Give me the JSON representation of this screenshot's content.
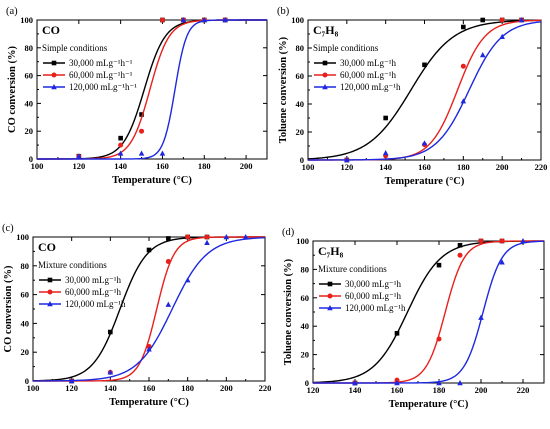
{
  "chart_data": [
    {
      "type": "line",
      "panel": "(a)",
      "title": "CO",
      "condition": "Simple conditions",
      "xlabel": "Temperature (°C)",
      "ylabel": "CO conversion (%)",
      "xlim": [
        100,
        210
      ],
      "ylim": [
        0,
        100
      ],
      "xticks": [
        100,
        120,
        140,
        160,
        180,
        200
      ],
      "yticks": [
        0,
        20,
        40,
        60,
        80,
        100
      ],
      "legend_position": "top-left",
      "series": [
        {
          "name": "30,000 mLg⁻¹h⁻¹",
          "color": "#000000",
          "marker": "square",
          "x": [
            120,
            140,
            150,
            160,
            170,
            180,
            190
          ],
          "y": [
            2,
            15,
            32,
            100,
            100,
            100,
            100
          ],
          "fit": {
            "k": 5,
            "x0": 151.3
          }
        },
        {
          "name": "60,000 mLg⁻¹h⁻¹",
          "color": "#e8201c",
          "marker": "circle",
          "x": [
            120,
            140,
            150,
            160,
            170,
            180,
            190
          ],
          "y": [
            2,
            10,
            20,
            100,
            100,
            100,
            100
          ],
          "fit": {
            "k": 4.6,
            "x0": 154
          }
        },
        {
          "name": "120,000 mLg⁻¹h⁻¹",
          "color": "#1d28e0",
          "marker": "triangle",
          "x": [
            120,
            140,
            150,
            160,
            170,
            180,
            190
          ],
          "y": [
            2,
            4,
            4,
            4,
            100,
            100,
            100
          ],
          "fit": {
            "k": 2.8,
            "x0": 166
          }
        }
      ]
    },
    {
      "type": "line",
      "panel": "(b)",
      "title": "C₇H₈",
      "condition": "Simple conditions",
      "xlabel": "Temperature (°C)",
      "ylabel": "Toluene conversion (%)",
      "xlim": [
        100,
        220
      ],
      "ylim": [
        0,
        100
      ],
      "xticks": [
        100,
        120,
        140,
        160,
        180,
        200,
        220
      ],
      "yticks": [
        0,
        20,
        40,
        60,
        80,
        100
      ],
      "legend_position": "top-left",
      "series": [
        {
          "name": "30,000 mLg⁻¹h",
          "color": "#000000",
          "marker": "square",
          "x": [
            120,
            140,
            160,
            180,
            190,
            200,
            210
          ],
          "y": [
            0,
            30,
            68,
            95,
            100,
            100,
            100
          ],
          "fit": {
            "k": 11,
            "x0": 153
          }
        },
        {
          "name": "60,000 mLg⁻¹h",
          "color": "#e8201c",
          "marker": "circle",
          "x": [
            120,
            140,
            160,
            180,
            200,
            210
          ],
          "y": [
            0,
            3,
            11,
            67,
            100,
            100
          ],
          "fit": {
            "k": 7,
            "x0": 177
          }
        },
        {
          "name": "120,000 mLg⁻¹h",
          "color": "#1d28e0",
          "marker": "triangle",
          "x": [
            120,
            140,
            160,
            180,
            190,
            200,
            210
          ],
          "y": [
            0,
            5,
            12,
            42,
            75,
            88,
            100
          ],
          "fit": {
            "k": 8.5,
            "x0": 183
          }
        }
      ]
    },
    {
      "type": "line",
      "panel": "(c)",
      "title": "CO",
      "condition": "Mixture conditions",
      "xlabel": "Temperature (°C)",
      "ylabel": "CO conversion (%)",
      "xlim": [
        100,
        220
      ],
      "ylim": [
        0,
        100
      ],
      "xticks": [
        100,
        120,
        140,
        160,
        180,
        200,
        220
      ],
      "yticks": [
        0,
        20,
        40,
        60,
        80,
        100
      ],
      "legend_position": "top-left",
      "series": [
        {
          "name": "30,000 mLg⁻¹h",
          "color": "#000000",
          "marker": "square",
          "x": [
            120,
            140,
            160,
            170,
            180,
            190
          ],
          "y": [
            0,
            34,
            91,
            99,
            100,
            100
          ],
          "fit": {
            "k": 7,
            "x0": 145
          }
        },
        {
          "name": "60,000 mLg⁻¹h",
          "color": "#e8201c",
          "marker": "circle",
          "x": [
            120,
            140,
            160,
            170,
            180,
            190
          ],
          "y": [
            0,
            6,
            24,
            83,
            100,
            100
          ],
          "fit": {
            "k": 4.5,
            "x0": 164
          }
        },
        {
          "name": "120,000 mLg⁻¹h",
          "color": "#1d28e0",
          "marker": "triangle",
          "x": [
            120,
            140,
            160,
            170,
            180,
            190,
            200,
            210
          ],
          "y": [
            0,
            6,
            22,
            53,
            70,
            96,
            100,
            100
          ],
          "fit": {
            "k": 9,
            "x0": 172
          }
        }
      ]
    },
    {
      "type": "line",
      "panel": "(d)",
      "title": "C₇H₈",
      "condition": "Mixture conditions",
      "xlabel": "Temperature (°C)",
      "ylabel": "Toluene conversion (%)",
      "xlim": [
        120,
        230
      ],
      "ylim": [
        0,
        100
      ],
      "xticks": [
        120,
        140,
        160,
        180,
        200,
        220
      ],
      "yticks": [
        0,
        20,
        40,
        60,
        80,
        100
      ],
      "legend_position": "top-left",
      "series": [
        {
          "name": "30,000 mLg⁻¹h",
          "color": "#000000",
          "marker": "square",
          "x": [
            140,
            160,
            180,
            190,
            200,
            210
          ],
          "y": [
            0,
            35,
            83,
            97,
            100,
            100
          ],
          "fit": {
            "k": 8,
            "x0": 165
          }
        },
        {
          "name": "60,000 mLg⁻¹h",
          "color": "#e8201c",
          "marker": "circle",
          "x": [
            140,
            160,
            180,
            190,
            200,
            210
          ],
          "y": [
            0,
            2,
            31,
            90,
            100,
            100
          ],
          "fit": {
            "k": 4.5,
            "x0": 183
          }
        },
        {
          "name": "120,000 mLg⁻¹h",
          "color": "#1d28e0",
          "marker": "triangle",
          "x": [
            140,
            160,
            180,
            190,
            200,
            210,
            220
          ],
          "y": [
            0,
            0,
            0,
            0,
            46,
            85,
            100
          ],
          "fit": {
            "k": 4.5,
            "x0": 201
          }
        }
      ]
    }
  ]
}
